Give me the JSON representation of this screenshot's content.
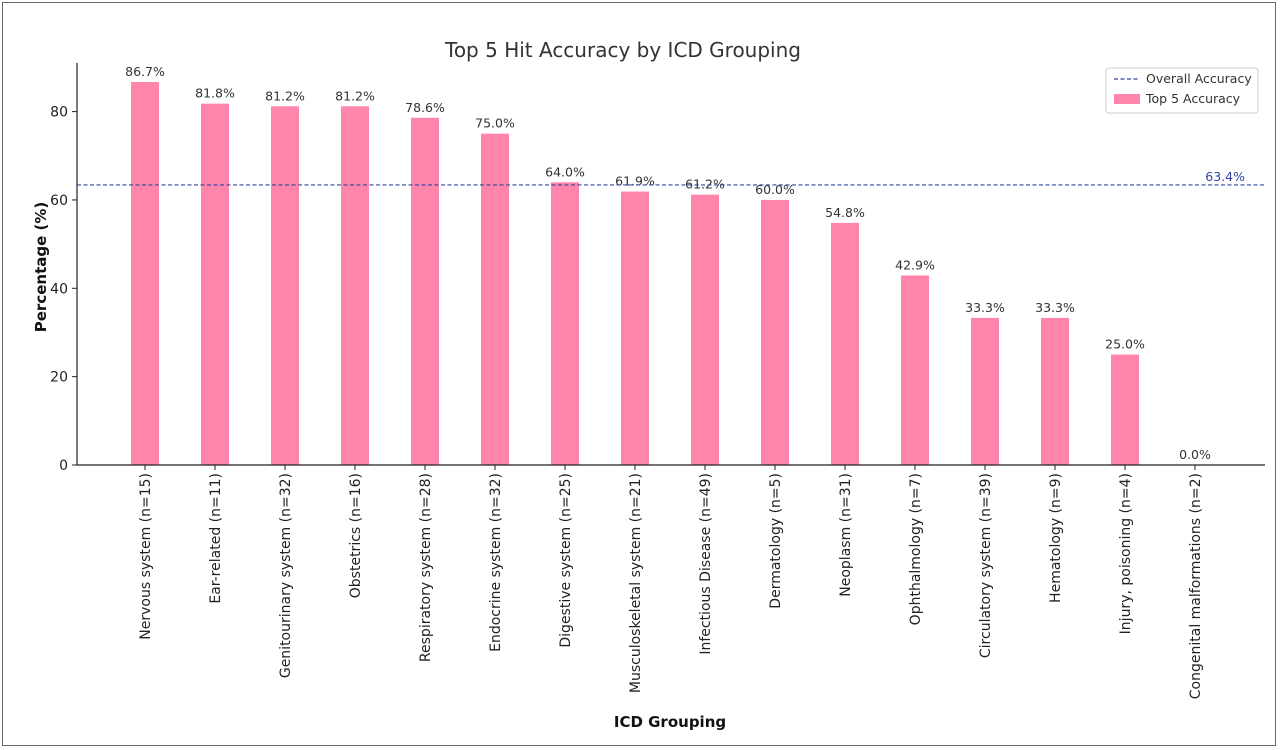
{
  "chart_data": {
    "type": "bar",
    "title": "Top 5 Hit Accuracy by ICD Grouping",
    "xlabel": "ICD Grouping",
    "ylabel": "Percentage (%)",
    "ylim": [
      0,
      91
    ],
    "yticks": [
      0,
      20,
      40,
      60,
      80
    ],
    "grid": false,
    "legend_position": "top-right",
    "categories": [
      "Nervous system (n=15)",
      "Ear-related (n=11)",
      "Genitourinary system (n=32)",
      "Obstetrics (n=16)",
      "Respiratory system (n=28)",
      "Endocrine system (n=32)",
      "Digestive system (n=25)",
      "Musculoskeletal system (n=21)",
      "Infectious Disease (n=49)",
      "Dermatology (n=5)",
      "Neoplasm (n=31)",
      "Ophthalmology (n=7)",
      "Circulatory system (n=39)",
      "Hematology (n=9)",
      "Injury, poisoning (n=4)",
      "Congenital malformations (n=2)"
    ],
    "series": [
      {
        "name": "Top 5 Accuracy",
        "color": "#ff85ab",
        "values": [
          86.7,
          81.8,
          81.2,
          81.2,
          78.6,
          75.0,
          64.0,
          61.9,
          61.2,
          60.0,
          54.8,
          42.9,
          33.3,
          33.3,
          25.0,
          0.0
        ]
      }
    ],
    "data_labels": [
      "86.7%",
      "81.8%",
      "81.2%",
      "81.2%",
      "78.6%",
      "75.0%",
      "64.0%",
      "61.9%",
      "61.2%",
      "60.0%",
      "54.8%",
      "42.9%",
      "33.3%",
      "33.3%",
      "25.0%",
      "0.0%"
    ],
    "reference_line": {
      "name": "Overall Accuracy",
      "value": 63.4,
      "label": "63.4%",
      "color": "#3344a0",
      "style": "dashed"
    }
  }
}
